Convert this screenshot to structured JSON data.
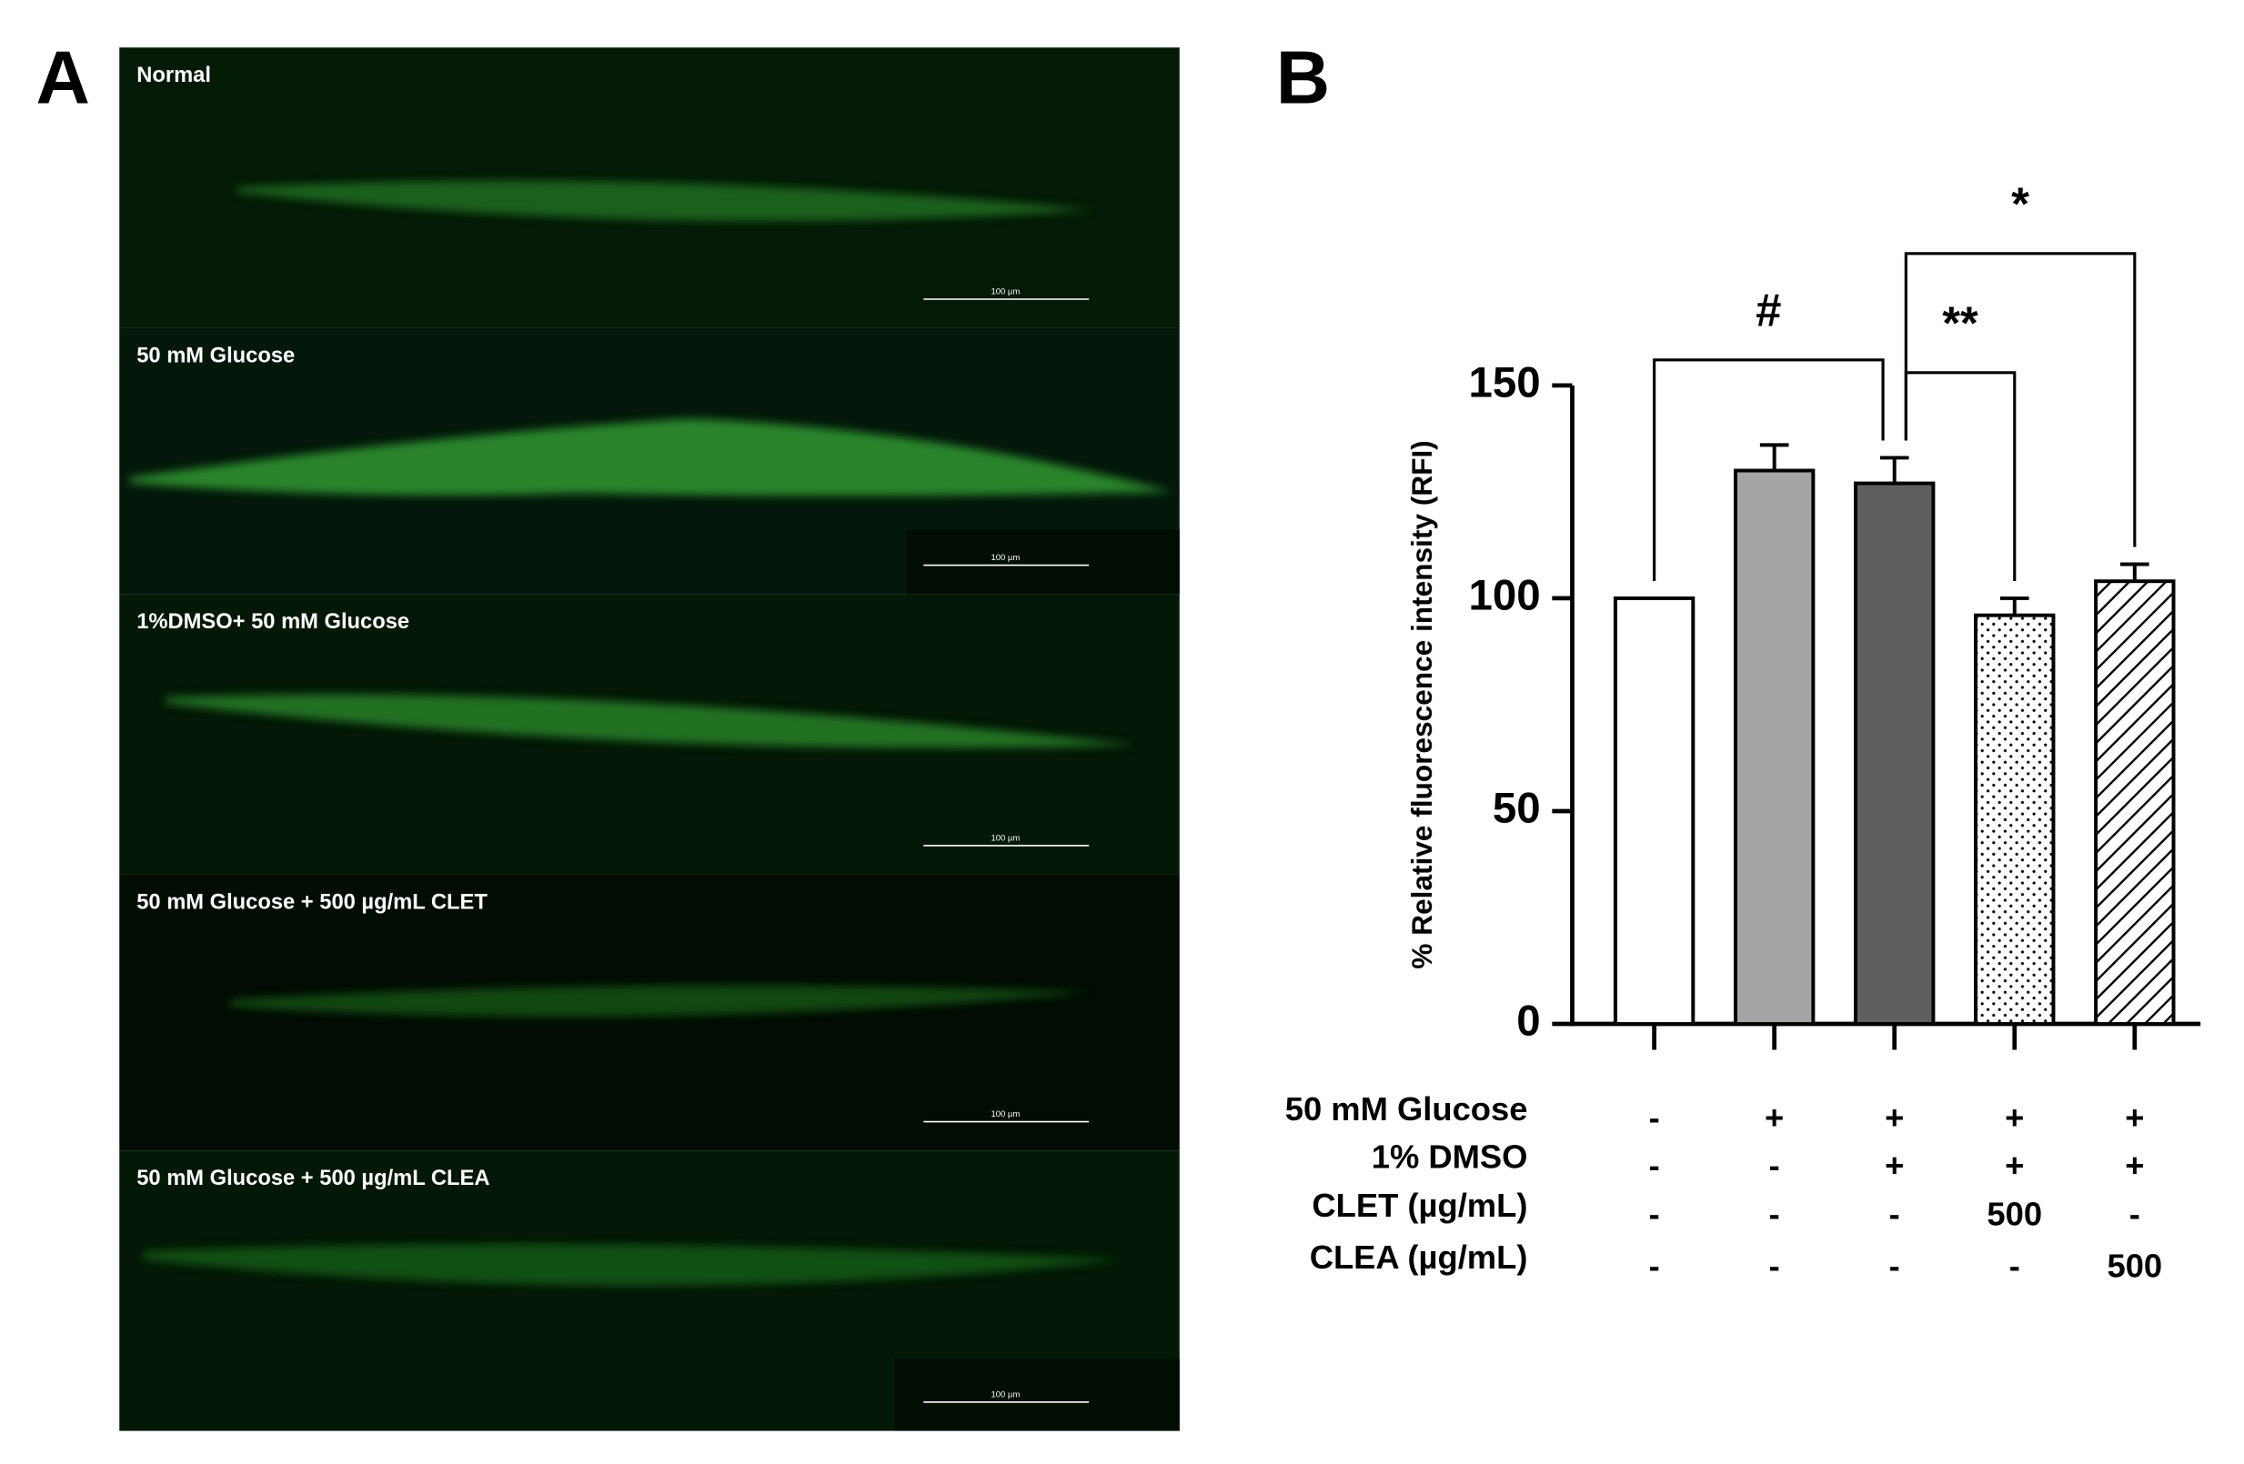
{
  "panel_labels": [
    "A",
    "B"
  ],
  "micrographs": [
    {
      "label": "Normal",
      "scale_bar": "100 µm"
    },
    {
      "label": "50 mM Glucose",
      "scale_bar": "100 µm"
    },
    {
      "label": "1%DMSO+ 50 mM Glucose",
      "scale_bar": "100 µm"
    },
    {
      "label": "50 mM Glucose  + 500 µg/mL CLET",
      "scale_bar": "100 µm"
    },
    {
      "label": "50 mM Glucose  + 500 µg/mL  CLEA",
      "scale_bar": "100 µm"
    }
  ],
  "chart_data": {
    "type": "bar",
    "ylabel": "% Relative fluorescence intensity (RFI)",
    "categories": [
      null,
      null,
      null,
      null,
      null
    ],
    "values": [
      100,
      130,
      127,
      96,
      104
    ],
    "errors": [
      0,
      6,
      6,
      4,
      4
    ],
    "colors": [
      "#ffffff",
      "#a5a5a8",
      "#5f5f5f",
      "#ffffff",
      "#ffffff"
    ],
    "patterns": [
      null,
      null,
      null,
      "dots",
      "diagonal"
    ],
    "ylim": [
      0,
      150
    ],
    "yticks": [
      0,
      50,
      100,
      150
    ],
    "annotations": [
      {
        "text": "#",
        "from": 0,
        "to": 2
      },
      {
        "text": "**",
        "from": 2,
        "to": 3
      },
      {
        "text": "*",
        "from": 2,
        "to": 4
      }
    ],
    "conditions": [
      {
        "name": "50 mM Glucose",
        "values": [
          "-",
          "+",
          "+",
          "+",
          "+"
        ]
      },
      {
        "name": "1% DMSO",
        "values": [
          "-",
          "-",
          "+",
          "+",
          "+"
        ]
      },
      {
        "name": "CLET (µg/mL)",
        "values": [
          "-",
          "-",
          "-",
          "500",
          "-"
        ]
      },
      {
        "name": "CLEA (µg/mL)",
        "values": [
          "-",
          "-",
          "-",
          "-",
          "500"
        ]
      }
    ]
  }
}
